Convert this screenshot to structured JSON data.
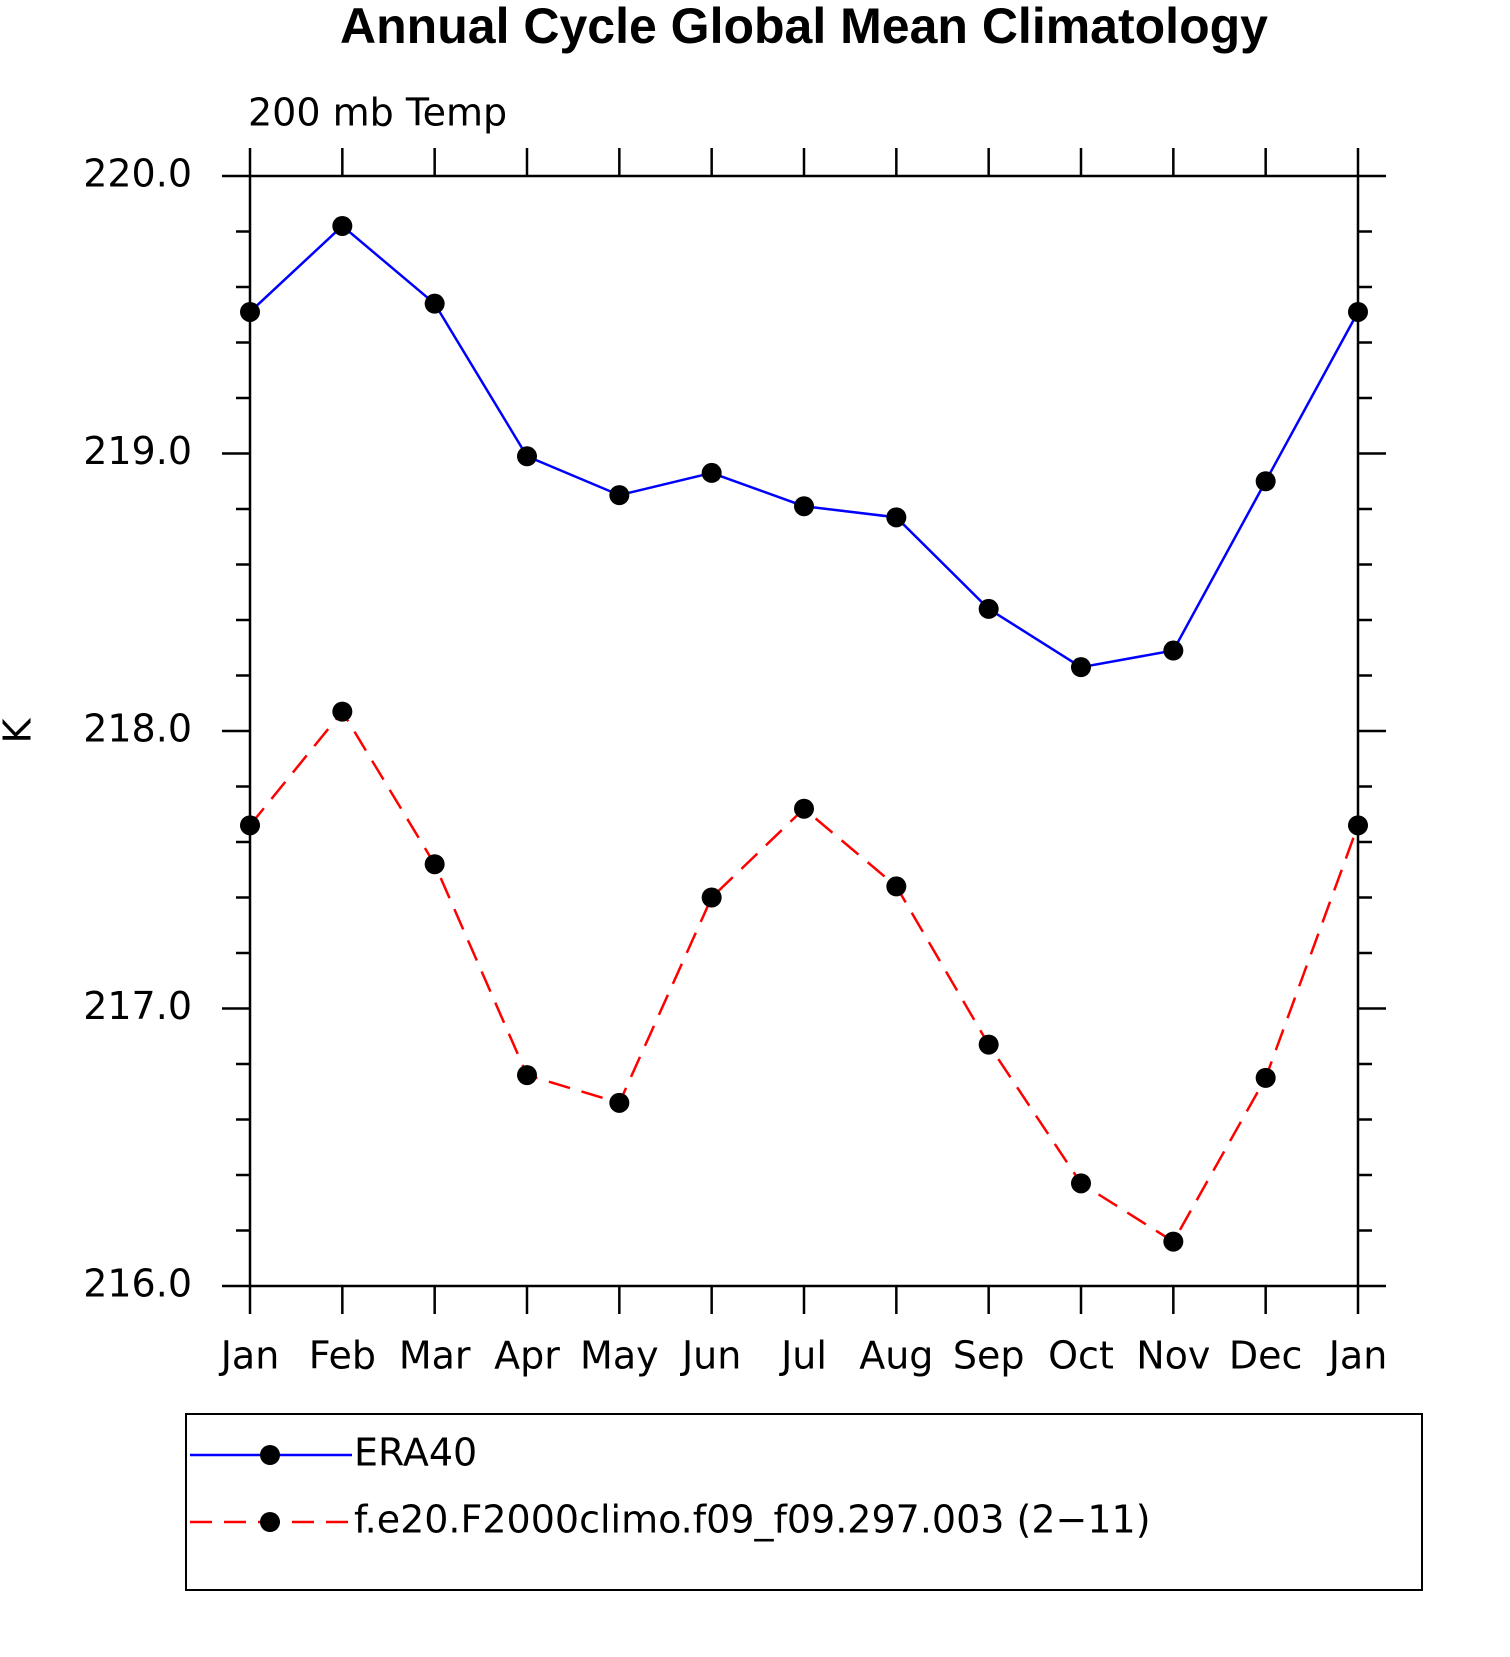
{
  "chart_data": {
    "type": "line",
    "title": "Annual Cycle Global Mean Climatology",
    "subtitle": "200 mb Temp",
    "y_label": "K",
    "categories": [
      "Jan",
      "Feb",
      "Mar",
      "Apr",
      "May",
      "Jun",
      "Jul",
      "Aug",
      "Sep",
      "Oct",
      "Nov",
      "Dec",
      "Jan"
    ],
    "series": [
      {
        "name": "ERA40",
        "color": "#0000ff",
        "dash": false,
        "values": [
          219.51,
          219.82,
          219.54,
          218.99,
          218.85,
          218.93,
          218.81,
          218.77,
          218.44,
          218.23,
          218.29,
          218.9,
          219.51
        ]
      },
      {
        "name": "f.e20.F2000climo.f09_f09.297.003 (2−11)",
        "color": "#ff0000",
        "dash": true,
        "values": [
          217.66,
          218.07,
          217.52,
          216.76,
          216.66,
          217.4,
          217.72,
          217.44,
          216.87,
          216.37,
          216.16,
          216.75,
          217.66
        ]
      }
    ],
    "ylim": [
      216,
      220
    ],
    "yticks": [
      {
        "value": 216,
        "label": "216.0"
      },
      {
        "value": 217,
        "label": "217.0"
      },
      {
        "value": 218,
        "label": "218.0"
      },
      {
        "value": 219,
        "label": "219.0"
      },
      {
        "value": 220,
        "label": "220.0"
      }
    ],
    "legend": "bottom"
  }
}
